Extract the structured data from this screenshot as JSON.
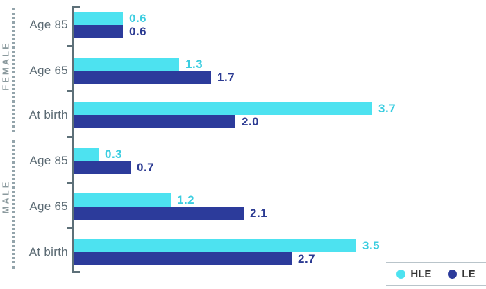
{
  "chart_data": {
    "type": "bar",
    "orientation": "horizontal",
    "categories": [
      "Age 85",
      "Age 65",
      "At birth",
      "Age 85",
      "Age 65",
      "At birth"
    ],
    "sections": [
      {
        "label": "FEMALE",
        "category_indexes": [
          0,
          1,
          2
        ]
      },
      {
        "label": "MALE",
        "category_indexes": [
          3,
          4,
          5
        ]
      }
    ],
    "series": [
      {
        "name": "HLE",
        "color": "#4de2f0",
        "label_color": "#3bcde0",
        "values": [
          0.6,
          1.3,
          3.7,
          0.3,
          1.2,
          3.5
        ]
      },
      {
        "name": "LE",
        "color": "#2c3b9b",
        "label_color": "#2b3a92",
        "values": [
          0.6,
          1.7,
          2.0,
          0.7,
          2.1,
          2.7
        ]
      }
    ],
    "value_labels": true,
    "value_format": "one-decimal",
    "xlim": [
      0,
      4.3
    ],
    "grid": false,
    "legend_position": "bottom-right"
  },
  "legend": {
    "hle_label": "HLE",
    "le_label": "LE"
  },
  "colors": {
    "axis": "#5d7078",
    "category_label": "#5b6a73",
    "section_label": "#8b9a9e",
    "dotted_guide": "#93a4ab",
    "legend_border": "#b9c4ca",
    "legend_text": "#333333",
    "background": "#ffffff"
  }
}
